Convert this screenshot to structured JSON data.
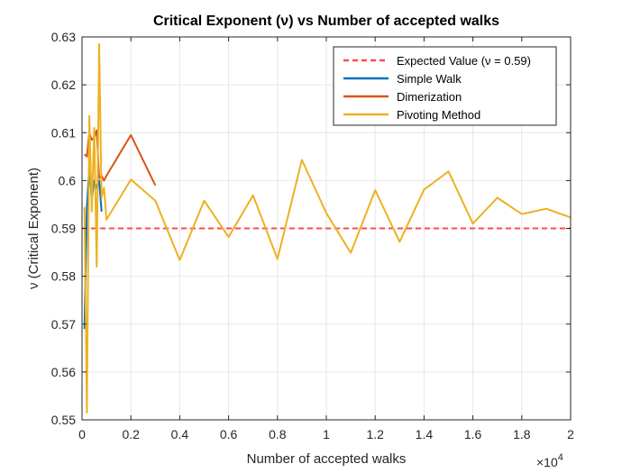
{
  "chart_data": {
    "type": "line",
    "title": "Critical Exponent (ν) vs Number of accepted walks",
    "xlabel": "Number of accepted walks",
    "ylabel": "ν (Critical Exponent)",
    "x_multiplier_base": "×10",
    "x_multiplier_exponent": "4",
    "xlim": [
      0,
      20000
    ],
    "ylim": [
      0.55,
      0.63
    ],
    "x_ticks": [
      0,
      2000,
      4000,
      6000,
      8000,
      10000,
      12000,
      14000,
      16000,
      18000,
      20000
    ],
    "x_tick_labels": [
      "0",
      "0.2",
      "0.4",
      "0.6",
      "0.8",
      "1",
      "1.2",
      "1.4",
      "1.6",
      "1.8",
      "2"
    ],
    "y_ticks": [
      0.55,
      0.56,
      0.57,
      0.58,
      0.59,
      0.6,
      0.61,
      0.62,
      0.63
    ],
    "y_tick_labels": [
      "0.55",
      "0.56",
      "0.57",
      "0.58",
      "0.59",
      "0.6",
      "0.61",
      "0.62",
      "0.63"
    ],
    "grid": true,
    "legend_position": "top-right",
    "series": [
      {
        "name": "Expected Value (ν = 0.59)",
        "color": "#ff4b4b",
        "dashed": true,
        "x": [
          0,
          20000
        ],
        "y": [
          0.59,
          0.59
        ]
      },
      {
        "name": "Simple Walk",
        "color": "#0072bd",
        "dashed": false,
        "x": [
          100,
          200,
          300,
          400,
          500,
          600,
          700,
          800
        ],
        "y": [
          0.569,
          0.5945,
          0.603,
          0.596,
          0.6,
          0.5985,
          0.6,
          0.5935
        ]
      },
      {
        "name": "Dimerization",
        "color": "#d95319",
        "dashed": false,
        "x": [
          100,
          200,
          300,
          400,
          500,
          600,
          700,
          800,
          900,
          1000,
          2000,
          3000
        ],
        "y": [
          0.6055,
          0.605,
          0.61,
          0.6085,
          0.609,
          0.6105,
          0.6005,
          0.601,
          0.6,
          0.601,
          0.6095,
          0.599
        ]
      },
      {
        "name": "Pivoting Method",
        "color": "#edb120",
        "dashed": false,
        "x": [
          100,
          200,
          300,
          400,
          500,
          600,
          700,
          800,
          900,
          1000,
          2000,
          3000,
          4000,
          5000,
          6000,
          7000,
          8000,
          9000,
          10000,
          11000,
          12000,
          13000,
          14000,
          15000,
          16000,
          17000,
          18000,
          19000,
          20000
        ],
        "y": [
          0.5945,
          0.5515,
          0.6135,
          0.5935,
          0.611,
          0.582,
          0.6285,
          0.5965,
          0.5985,
          0.5918,
          0.6002,
          0.5958,
          0.5834,
          0.5958,
          0.5882,
          0.5969,
          0.5836,
          0.6043,
          0.5932,
          0.5849,
          0.598,
          0.5872,
          0.5981,
          0.6019,
          0.591,
          0.5964,
          0.593,
          0.5941,
          0.5923
        ]
      }
    ]
  }
}
